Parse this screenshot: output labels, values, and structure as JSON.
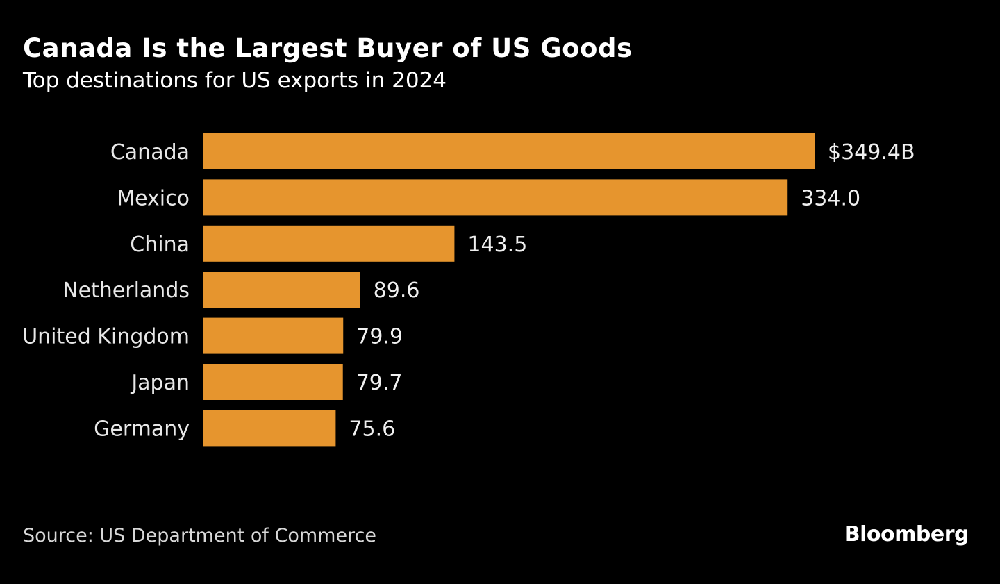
{
  "chart_data": {
    "type": "bar",
    "orientation": "horizontal",
    "title": "Canada Is the Largest Buyer of US Goods",
    "subtitle": "Top destinations for US exports in 2024",
    "categories": [
      "Canada",
      "Mexico",
      "China",
      "Netherlands",
      "United Kingdom",
      "Japan",
      "Germany"
    ],
    "values": [
      349.4,
      334.0,
      143.5,
      89.6,
      79.9,
      79.7,
      75.6
    ],
    "value_labels": [
      "$349.4B",
      "334.0",
      "143.5",
      "89.6",
      "79.9",
      "79.7",
      "75.6"
    ],
    "unit": "USD billions",
    "xlim": [
      0,
      349.4
    ],
    "grid": false,
    "bar_color": "#e6952e",
    "source": "Source: US Department of Commerce"
  },
  "branding": {
    "logo": "Bloomberg"
  }
}
